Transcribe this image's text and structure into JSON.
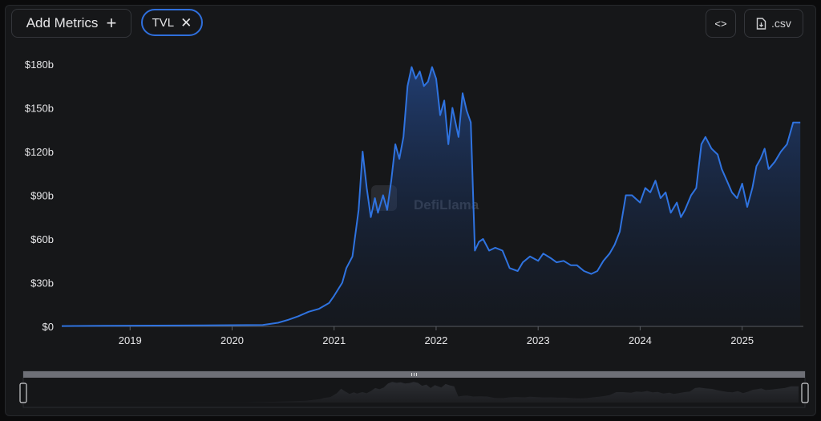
{
  "toolbar": {
    "add_metrics_label": "Add Metrics",
    "add_icon": "plus-icon",
    "metric_chip_label": "TVL",
    "chip_close_icon": "close-icon",
    "embed_icon": "code-icon",
    "csv_label": ".csv",
    "csv_icon": "file-download-icon"
  },
  "watermark": {
    "text": "DefiLlama"
  },
  "colors": {
    "line": "#2f73e0",
    "accent": "#2f6fdc",
    "background": "#161719",
    "axis_text": "#e6e6e8"
  },
  "chart_data": {
    "type": "area",
    "title": "",
    "xlabel": "",
    "ylabel": "",
    "y_tick_labels": [
      "$0",
      "$30b",
      "$60b",
      "$90b",
      "$120b",
      "$150b",
      "$180b"
    ],
    "y_ticks": [
      0,
      30,
      60,
      90,
      120,
      150,
      180
    ],
    "ylim": [
      0,
      180
    ],
    "y_unit": "billion USD",
    "x_tick_labels": [
      "2019",
      "2020",
      "2021",
      "2022",
      "2023",
      "2024",
      "2025"
    ],
    "x_ticks": [
      2019,
      2020,
      2021,
      2022,
      2023,
      2024,
      2025
    ],
    "xlim": [
      2018.33,
      2025.6
    ],
    "grid": false,
    "legend": "none",
    "series": [
      {
        "name": "TVL",
        "x": [
          2018.33,
          2019.0,
          2019.5,
          2020.0,
          2020.3,
          2020.45,
          2020.55,
          2020.65,
          2020.75,
          2020.85,
          2020.95,
          2021.0,
          2021.08,
          2021.12,
          2021.18,
          2021.24,
          2021.28,
          2021.32,
          2021.36,
          2021.4,
          2021.43,
          2021.48,
          2021.52,
          2021.56,
          2021.6,
          2021.64,
          2021.68,
          2021.72,
          2021.76,
          2021.8,
          2021.84,
          2021.88,
          2021.92,
          2021.96,
          2022.0,
          2022.04,
          2022.08,
          2022.12,
          2022.16,
          2022.22,
          2022.26,
          2022.3,
          2022.34,
          2022.38,
          2022.42,
          2022.46,
          2022.52,
          2022.58,
          2022.65,
          2022.72,
          2022.8,
          2022.85,
          2022.92,
          2023.0,
          2023.05,
          2023.12,
          2023.18,
          2023.25,
          2023.32,
          2023.38,
          2023.45,
          2023.52,
          2023.58,
          2023.64,
          2023.7,
          2023.75,
          2023.8,
          2023.86,
          2023.92,
          2024.0,
          2024.05,
          2024.1,
          2024.15,
          2024.2,
          2024.25,
          2024.3,
          2024.36,
          2024.4,
          2024.44,
          2024.5,
          2024.55,
          2024.6,
          2024.64,
          2024.7,
          2024.76,
          2024.8,
          2024.85,
          2024.9,
          2024.95,
          2025.0,
          2025.05,
          2025.1,
          2025.14,
          2025.18,
          2025.22,
          2025.26,
          2025.32,
          2025.38,
          2025.44,
          2025.5,
          2025.55,
          2025.57
        ],
        "values": [
          0.2,
          0.5,
          0.6,
          0.8,
          1.0,
          2.5,
          4.5,
          7.0,
          10.0,
          12.0,
          16.0,
          21.0,
          30.0,
          40.0,
          48.0,
          80.0,
          120.0,
          95.0,
          75.0,
          88.0,
          78.0,
          90.0,
          80.0,
          100.0,
          125.0,
          115.0,
          130.0,
          165.0,
          178.0,
          170.0,
          175.0,
          165.0,
          168.0,
          178.0,
          170.0,
          145.0,
          155.0,
          125.0,
          150.0,
          130.0,
          160.0,
          148.0,
          140.0,
          52.0,
          58.0,
          60.0,
          52.0,
          54.0,
          52.0,
          40.0,
          38.0,
          44.0,
          48.0,
          45.0,
          50.0,
          47.0,
          44.0,
          45.0,
          42.0,
          42.0,
          38.0,
          36.0,
          38.0,
          45.0,
          50.0,
          56.0,
          65.0,
          90.0,
          90.0,
          85.0,
          95.0,
          92.0,
          100.0,
          88.0,
          92.0,
          78.0,
          85.0,
          75.0,
          80.0,
          90.0,
          95.0,
          125.0,
          130.0,
          122.0,
          118.0,
          108.0,
          100.0,
          92.0,
          88.0,
          98.0,
          82.0,
          95.0,
          110.0,
          115.0,
          122.0,
          108.0,
          113.0,
          120.0,
          125.0,
          140.0,
          140.0,
          140.0
        ]
      }
    ]
  },
  "range_selector": {
    "handle_icon": "grip-icon"
  }
}
